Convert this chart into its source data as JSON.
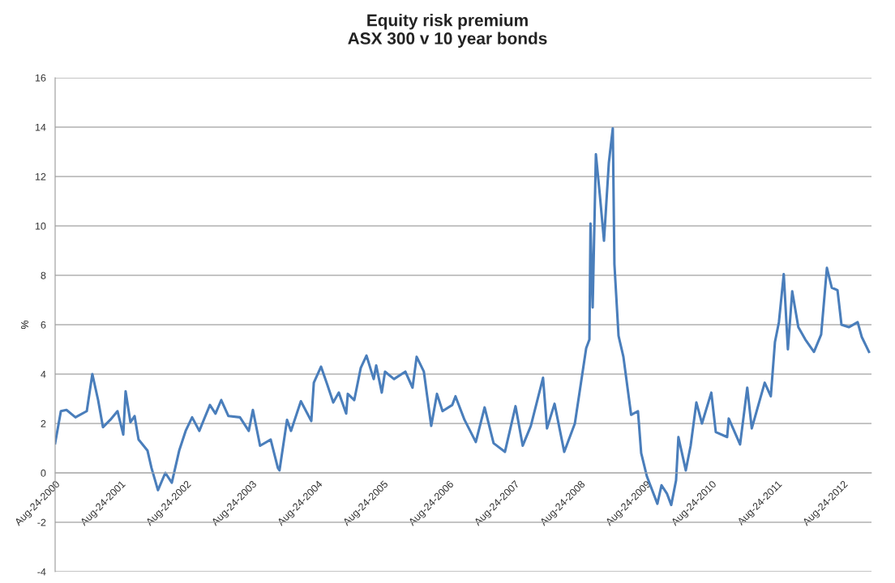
{
  "chart_data": {
    "type": "line",
    "title": "Equity risk premium\nASX 300 v 10 year bonds",
    "ylabel": "%",
    "x": [
      "2000-08-24",
      "2000-09-25",
      "2000-10-26",
      "2000-12-15",
      "2001-02-16",
      "2001-03-19",
      "2001-04-20",
      "2001-05-17",
      "2001-06-27",
      "2001-08-06",
      "2001-09-07",
      "2001-09-20",
      "2001-10-17",
      "2001-11-09",
      "2001-12-01",
      "2002-01-20",
      "2002-02-11",
      "2002-03-19",
      "2002-04-29",
      "2002-06-04",
      "2002-07-15",
      "2002-08-20",
      "2002-09-25",
      "2002-11-04",
      "2003-01-02",
      "2003-02-02",
      "2003-03-06",
      "2003-04-15",
      "2003-06-18",
      "2003-08-06",
      "2003-08-29",
      "2003-10-08",
      "2003-12-06",
      "2004-01-15",
      "2004-01-24",
      "2004-03-06",
      "2004-03-28",
      "2004-05-22",
      "2004-07-19",
      "2004-08-02",
      "2004-09-11",
      "2004-10-17",
      "2004-11-18",
      "2004-12-19",
      "2005-01-29",
      "2005-02-07",
      "2005-03-15",
      "2005-04-20",
      "2005-05-22",
      "2005-07-01",
      "2005-07-15",
      "2005-08-15",
      "2005-09-02",
      "2005-10-22",
      "2005-12-24",
      "2006-02-02",
      "2006-02-25",
      "2006-04-06",
      "2006-05-17",
      "2006-06-18",
      "2006-07-19",
      "2006-09-11",
      "2006-09-29",
      "2006-11-18",
      "2007-01-20",
      "2007-03-10",
      "2007-04-29",
      "2007-07-01",
      "2007-08-29",
      "2007-10-08",
      "2007-11-22",
      "2008-01-29",
      "2008-02-20",
      "2008-04-02",
      "2008-05-26",
      "2008-07-24",
      "2008-09-25",
      "2008-10-13",
      "2008-10-19",
      "2008-10-31",
      "2008-11-18",
      "2008-12-10",
      "2009-01-02",
      "2009-01-29",
      "2009-02-20",
      "2009-03-01",
      "2009-03-24",
      "2009-04-20",
      "2009-06-02",
      "2009-07-10",
      "2009-07-28",
      "2009-08-29",
      "2009-10-26",
      "2009-11-18",
      "2009-12-19",
      "2010-01-11",
      "2010-02-07",
      "2010-02-20",
      "2010-04-02",
      "2010-04-29",
      "2010-05-31",
      "2010-07-01",
      "2010-08-22",
      "2010-09-16",
      "2010-11-18",
      "2010-11-27",
      "2011-01-29",
      "2011-03-10",
      "2011-04-04",
      "2011-06-15",
      "2011-07-19",
      "2011-08-11",
      "2011-09-02",
      "2011-09-29",
      "2011-10-22",
      "2011-11-15",
      "2011-12-19",
      "2012-01-27",
      "2012-03-15",
      "2012-04-24",
      "2012-05-26",
      "2012-06-22",
      "2012-07-24",
      "2012-08-15",
      "2012-09-25",
      "2012-11-13",
      "2012-12-06",
      "2013-01-15"
    ],
    "series": [
      {
        "color": "#4a7ebb",
        "values": [
          1.2,
          2.5,
          2.55,
          2.25,
          2.5,
          4.0,
          2.95,
          1.85,
          2.15,
          2.5,
          1.55,
          3.3,
          2.05,
          2.3,
          1.35,
          0.9,
          0.2,
          -0.7,
          0.0,
          -0.4,
          0.9,
          1.7,
          2.25,
          1.7,
          2.75,
          2.4,
          2.95,
          2.3,
          2.25,
          1.7,
          2.55,
          1.1,
          1.35,
          0.2,
          0.1,
          2.15,
          1.7,
          2.9,
          2.1,
          3.65,
          4.3,
          3.55,
          2.85,
          3.25,
          2.4,
          3.2,
          2.95,
          4.25,
          4.75,
          3.8,
          4.35,
          3.25,
          4.1,
          3.8,
          4.1,
          3.45,
          4.7,
          4.1,
          1.9,
          3.2,
          2.5,
          2.75,
          3.1,
          2.15,
          1.25,
          2.65,
          1.2,
          0.85,
          2.7,
          1.1,
          1.9,
          3.85,
          1.8,
          2.8,
          0.85,
          2.0,
          5.05,
          5.4,
          10.1,
          6.7,
          12.9,
          11.25,
          9.4,
          12.55,
          13.95,
          8.45,
          5.55,
          4.7,
          2.35,
          2.5,
          0.8,
          -0.15,
          -1.25,
          -0.5,
          -0.85,
          -1.3,
          -0.3,
          1.45,
          0.1,
          1.1,
          2.85,
          2.0,
          3.25,
          1.65,
          1.45,
          2.2,
          1.15,
          3.45,
          1.8,
          3.65,
          3.1,
          5.3,
          6.1,
          8.05,
          5.0,
          7.35,
          5.9,
          5.4,
          4.9,
          5.6,
          8.3,
          7.5,
          7.4,
          6.0,
          5.9,
          6.1,
          5.5,
          4.9
        ]
      }
    ],
    "xlim": [
      "2000-08-24",
      "2013-01-29"
    ],
    "xticks": [
      {
        "value": "2000-08-24",
        "label": "Aug-24-2000"
      },
      {
        "value": "2001-08-24",
        "label": "Aug-24-2001"
      },
      {
        "value": "2002-08-24",
        "label": "Aug-24-2002"
      },
      {
        "value": "2003-08-24",
        "label": "Aug-24-2003"
      },
      {
        "value": "2004-08-24",
        "label": "Aug-24-2004"
      },
      {
        "value": "2005-08-24",
        "label": "Aug-24-2005"
      },
      {
        "value": "2006-08-24",
        "label": "Aug-24-2006"
      },
      {
        "value": "2007-08-24",
        "label": "Aug-24-2007"
      },
      {
        "value": "2008-08-24",
        "label": "Aug-24-2008"
      },
      {
        "value": "2009-08-24",
        "label": "Aug-24-2009"
      },
      {
        "value": "2010-08-24",
        "label": "Aug-24-2010"
      },
      {
        "value": "2011-08-24",
        "label": "Aug-24-2011"
      },
      {
        "value": "2012-08-24",
        "label": "Aug-24-2012"
      }
    ],
    "ylim": [
      -4,
      16
    ],
    "yticks": [
      -4,
      -2,
      0,
      2,
      4,
      6,
      8,
      10,
      12,
      14,
      16
    ],
    "grid": "y",
    "legend": false,
    "marker": "none",
    "line_style": "solid"
  }
}
